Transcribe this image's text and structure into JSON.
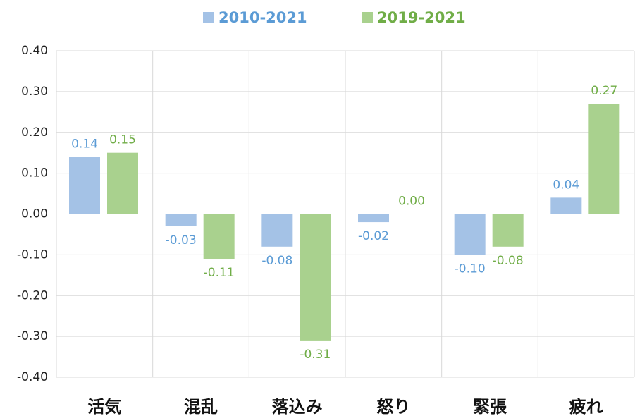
{
  "chart_data": {
    "type": "bar",
    "categories": [
      "活気",
      "混乱",
      "落込み",
      "怒り",
      "緊張",
      "疲れ"
    ],
    "series": [
      {
        "name": "2010-2021",
        "color": "#a4c2e6",
        "label_color": "#5b9bd5",
        "values": [
          0.14,
          -0.03,
          -0.08,
          -0.02,
          -0.1,
          0.04
        ],
        "value_labels": [
          "0.14",
          "-0.03",
          "-0.08",
          "-0.02",
          "-0.10",
          "0.04"
        ]
      },
      {
        "name": "2019-2021",
        "color": "#a9d18e",
        "label_color": "#70ad47",
        "values": [
          0.15,
          -0.11,
          -0.31,
          0.0,
          -0.08,
          0.27
        ],
        "value_labels": [
          "0.15",
          "-0.11",
          "-0.31",
          "0.00",
          "-0.08",
          "0.27"
        ]
      }
    ],
    "ylim": [
      -0.4,
      0.4
    ],
    "yticks": [
      {
        "value": -0.4,
        "label": "-0.40"
      },
      {
        "value": -0.3,
        "label": "-0.30"
      },
      {
        "value": -0.2,
        "label": "-0.20"
      },
      {
        "value": -0.1,
        "label": "-0.10"
      },
      {
        "value": 0,
        "label": "0.00"
      },
      {
        "value": 0.1,
        "label": "0.10"
      },
      {
        "value": 0.2,
        "label": "0.20"
      },
      {
        "value": 0.3,
        "label": "0.30"
      },
      {
        "value": 0.4,
        "label": "0.40"
      }
    ],
    "grid": true,
    "legend": "top"
  }
}
